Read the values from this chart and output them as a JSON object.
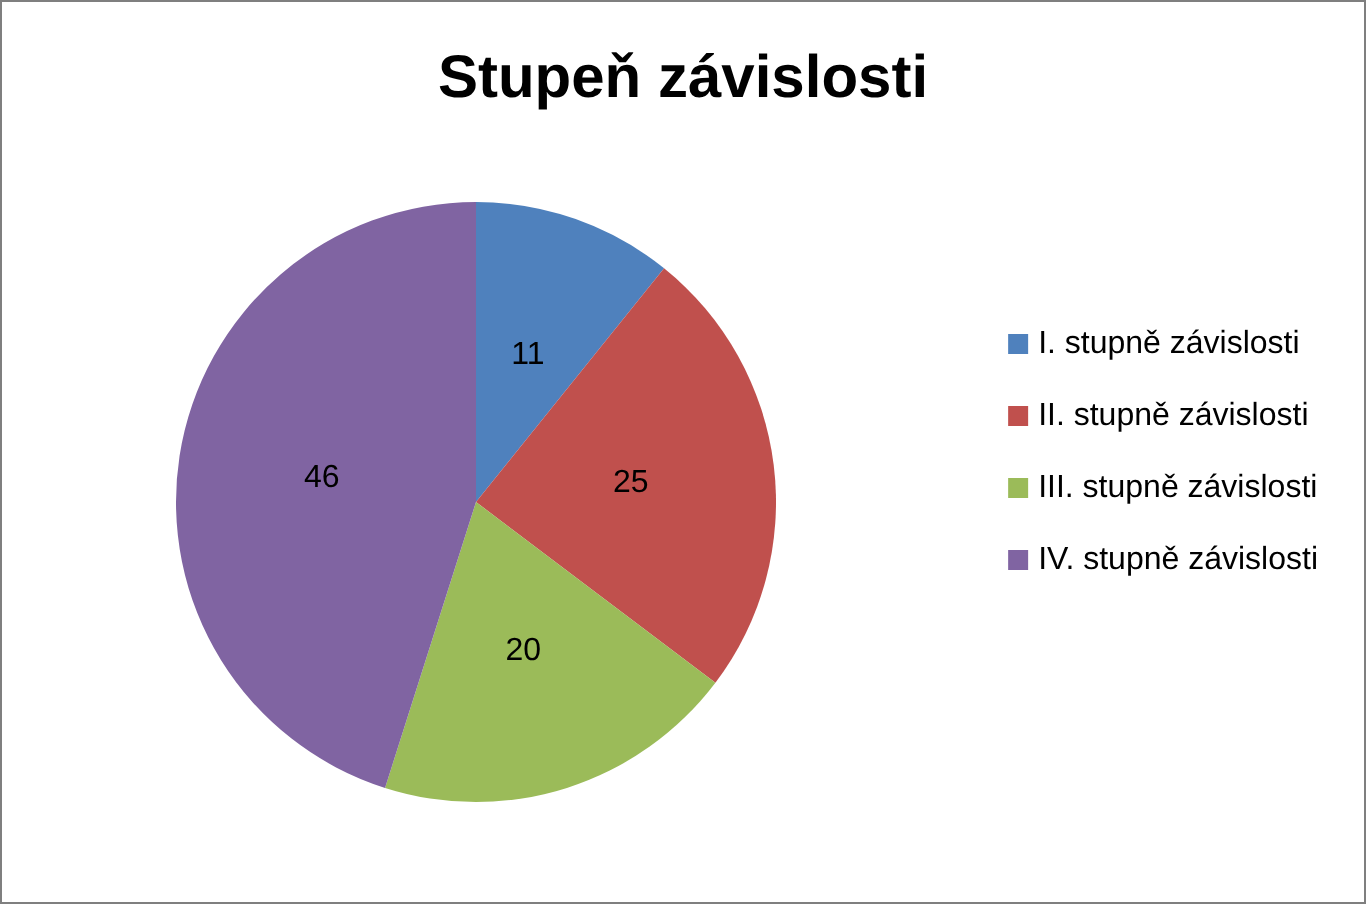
{
  "chart_data": {
    "type": "pie",
    "title": "Stupeň závislosti",
    "categories": [
      "I. stupně závislosti",
      "II. stupně závislosti",
      "III. stupně závislosti",
      "IV. stupně závislosti"
    ],
    "values": [
      11,
      25,
      20,
      46
    ],
    "colors": [
      "#4f81bd",
      "#c0504d",
      "#9bbb59",
      "#8064a2"
    ],
    "data_labels": true,
    "legend": "right"
  }
}
